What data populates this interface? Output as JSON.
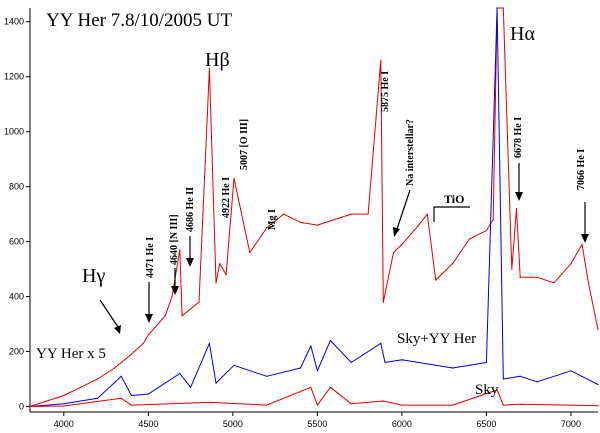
{
  "chart_data": {
    "type": "line",
    "title": "YY Her 7.8/10/2005 UT",
    "xlim": [
      3800,
      7160
    ],
    "ylim": [
      -20,
      1450
    ],
    "x_ticks": [
      4000,
      4500,
      5000,
      5500,
      6000,
      6500,
      7000
    ],
    "y_ticks": [
      0,
      200,
      400,
      600,
      800,
      1000,
      1200,
      1400
    ],
    "grid": false,
    "series": [
      {
        "name": "YY Her x 5",
        "color": "#e00000",
        "x": [
          3800,
          3900,
          4000,
          4100,
          4200,
          4300,
          4340,
          4400,
          4471,
          4500,
          4600,
          4640,
          4686,
          4700,
          4800,
          4861,
          4900,
          4922,
          4960,
          5007,
          5100,
          5200,
          5300,
          5400,
          5500,
          5600,
          5700,
          5800,
          5875,
          5890,
          5950,
          6000,
          6100,
          6150,
          6200,
          6300,
          6400,
          6500,
          6540,
          6563,
          6600,
          6650,
          6678,
          6700,
          6800,
          6900,
          7000,
          7066,
          7100,
          7160
        ],
        "y": [
          0,
          20,
          40,
          70,
          100,
          140,
          160,
          190,
          230,
          260,
          330,
          400,
          570,
          330,
          380,
          1230,
          450,
          520,
          480,
          830,
          560,
          650,
          700,
          670,
          660,
          680,
          700,
          700,
          1260,
          380,
          560,
          590,
          660,
          700,
          460,
          520,
          610,
          640,
          680,
          1470,
          1470,
          500,
          720,
          470,
          470,
          450,
          520,
          590,
          460,
          280
        ]
      },
      {
        "name": "Sky+YY Her",
        "color": "#0000e0",
        "x": [
          3800,
          4000,
          4200,
          4340,
          4400,
          4500,
          4686,
          4750,
          4861,
          4900,
          5007,
          5200,
          5400,
          5461,
          5500,
          5577,
          5700,
          5875,
          5900,
          6000,
          6200,
          6300,
          6400,
          6500,
          6563,
          6600,
          6700,
          6800,
          7000,
          7160
        ],
        "y": [
          0,
          10,
          30,
          110,
          40,
          45,
          120,
          70,
          230,
          85,
          150,
          110,
          140,
          220,
          130,
          240,
          160,
          230,
          160,
          170,
          150,
          140,
          150,
          160,
          1450,
          100,
          110,
          90,
          130,
          80
        ]
      },
      {
        "name": "Sky",
        "color": "#e00000",
        "x": [
          3800,
          4000,
          4340,
          4400,
          4861,
          5200,
          5461,
          5500,
          5577,
          5700,
          5890,
          6000,
          6300,
          6563,
          6600,
          6700,
          7000,
          7160
        ],
        "y": [
          0,
          2,
          30,
          5,
          15,
          5,
          70,
          5,
          70,
          10,
          20,
          5,
          5,
          60,
          5,
          8,
          5,
          3
        ]
      }
    ],
    "annotations": {
      "big_labels": [
        {
          "text": "Hγ",
          "x": 4340
        },
        {
          "text": "Hβ",
          "x": 4861
        },
        {
          "text": "Hα",
          "x": 6563
        }
      ],
      "line_labels": [
        "4471 He I",
        "4640 [N III]",
        "4686 He II",
        "4922 He I",
        "5007 [O III]",
        "Mg I",
        "5875 He I",
        "Na interstellar?",
        "6678 He I",
        "7066 He I",
        "TiO"
      ],
      "series_labels": [
        "YY Her x 5",
        "Sky+YY Her",
        "Sky"
      ]
    }
  }
}
